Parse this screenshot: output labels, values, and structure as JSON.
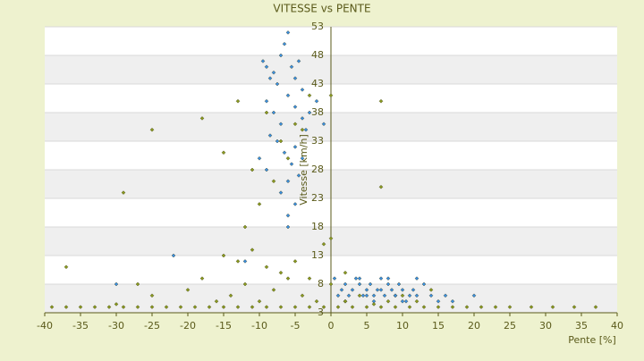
{
  "chart_data": {
    "type": "scatter",
    "title": "VITESSE vs PENTE",
    "x_label": "Pente [%]",
    "y_label": "Vitesse [km/h]",
    "xlim": [
      -40,
      40
    ],
    "xticks": [
      -40,
      -35,
      -30,
      -25,
      -20,
      -15,
      -10,
      -5,
      0,
      5,
      10,
      15,
      20,
      25,
      30,
      35,
      40
    ],
    "ylim": [
      3,
      53
    ],
    "yticks": [
      3,
      8,
      13,
      18,
      23,
      28,
      33,
      38,
      43,
      48,
      53
    ],
    "grid": true,
    "series": [
      {
        "color": "#3a8ee0",
        "x": [
          -9.5,
          -9,
          -8.5,
          -8,
          -7.5,
          -7,
          -6.5,
          -6,
          -5.5,
          -5,
          -4.5,
          -4,
          -9,
          -8,
          -7,
          -6,
          -5,
          -4,
          -3.5,
          -7.5,
          -6.5,
          -5.5,
          -4.5,
          -8.5,
          -6,
          -5,
          -7,
          -6,
          -5,
          -4,
          -10,
          -9,
          -3,
          -2,
          -22,
          -12,
          -30,
          -6,
          1,
          1.5,
          2,
          2.5,
          3,
          3.5,
          4,
          4.5,
          5,
          5.5,
          6,
          6.5,
          7,
          7.5,
          8,
          8.5,
          9,
          9.5,
          10,
          10.5,
          11,
          11.5,
          12,
          13,
          14,
          15,
          16,
          17,
          20,
          2,
          4,
          6,
          8,
          10,
          12,
          5,
          7,
          9,
          -1,
          0.5
        ],
        "values": [
          47,
          46,
          44,
          45,
          43,
          48,
          50,
          52,
          46,
          44,
          47,
          42,
          40,
          38,
          36,
          41,
          39,
          37,
          35,
          33,
          31,
          29,
          27,
          34,
          26,
          22,
          24,
          20,
          32,
          30,
          30,
          28,
          38,
          40,
          13,
          12,
          8,
          18,
          6,
          7,
          8,
          6,
          7,
          9,
          8,
          6,
          7,
          8,
          6,
          7,
          9,
          6,
          8,
          7,
          6,
          8,
          7,
          5,
          6,
          7,
          6,
          8,
          6,
          5,
          6,
          5,
          6,
          5,
          9,
          5,
          9,
          5,
          9,
          6,
          7,
          6,
          36,
          9
        ]
      },
      {
        "color": "#8a9a20",
        "x": [
          -39,
          -37,
          -35,
          -33,
          -31,
          -29,
          -27,
          -25,
          -23,
          -21,
          -19,
          -17,
          -15,
          -13,
          -11,
          -9,
          -7,
          -5,
          -3,
          -1,
          1,
          3,
          5,
          7,
          9,
          11,
          13,
          15,
          17,
          19,
          21,
          23,
          25,
          28,
          31,
          34,
          37,
          -37,
          -30,
          -27,
          -25,
          -20,
          -18,
          -16,
          -14,
          -12,
          -10,
          -8,
          -6,
          -4,
          -2,
          0,
          2,
          -15,
          -13,
          -11,
          -9,
          -7,
          -5,
          -3,
          -1,
          -12,
          -10,
          -8,
          -6,
          -4,
          -25,
          -29,
          -18,
          -15,
          -13,
          -11,
          -9,
          -7,
          -5,
          -3,
          2,
          4,
          6,
          8,
          10,
          12,
          14,
          7,
          7,
          0,
          0
        ],
        "values": [
          4,
          4,
          4,
          4,
          4,
          4,
          4,
          4,
          4,
          4,
          4,
          4,
          4,
          4,
          4,
          4,
          4,
          4,
          4,
          4,
          4,
          4,
          4,
          4,
          4,
          4,
          4,
          4,
          4,
          4,
          4,
          4,
          4,
          4,
          4,
          4,
          4,
          11,
          4.5,
          8,
          6,
          7,
          9,
          5,
          6,
          8,
          5,
          7,
          9,
          6,
          5,
          8,
          10,
          13,
          12,
          14,
          11,
          10,
          12,
          9,
          15,
          18,
          22,
          26,
          30,
          35,
          35,
          24,
          37,
          31,
          40,
          28,
          38,
          33,
          36,
          41,
          5,
          6,
          4.5,
          5,
          6,
          5,
          7,
          40,
          25,
          41,
          16
        ]
      }
    ]
  }
}
